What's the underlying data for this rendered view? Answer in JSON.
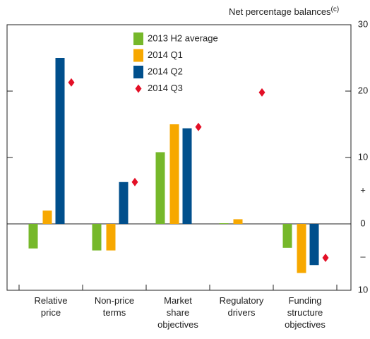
{
  "chart_data": {
    "type": "bar",
    "title": "Net percentage balances",
    "title_note": "(c)",
    "categories": [
      "Relative price",
      "Non-price terms",
      "Market share objectives",
      "Regulatory drivers",
      "Funding structure objectives"
    ],
    "series": [
      {
        "name": "2013 H2 average",
        "color": "#76b82a",
        "values": [
          -3.7,
          -4,
          10.8,
          0.1,
          -3.6
        ]
      },
      {
        "name": "2014 Q1",
        "color": "#f7a800",
        "values": [
          2,
          -4,
          15,
          0.7,
          -7.4
        ]
      },
      {
        "name": "2014 Q2",
        "color": "#004f8c",
        "values": [
          25,
          6.3,
          14.4,
          null,
          -6.2
        ]
      },
      {
        "name": "2014 Q3",
        "color": "#e30f26",
        "marker": "diamond",
        "values": [
          21.3,
          6.3,
          14.6,
          19.8,
          -5.1
        ]
      }
    ],
    "ylim": [
      -10,
      30
    ],
    "yticks": [
      {
        "value": -10,
        "label": "10"
      },
      {
        "value": -5,
        "label": "–"
      },
      0,
      {
        "value": 5,
        "label": "+"
      },
      10,
      20,
      30
    ],
    "grid": false
  }
}
